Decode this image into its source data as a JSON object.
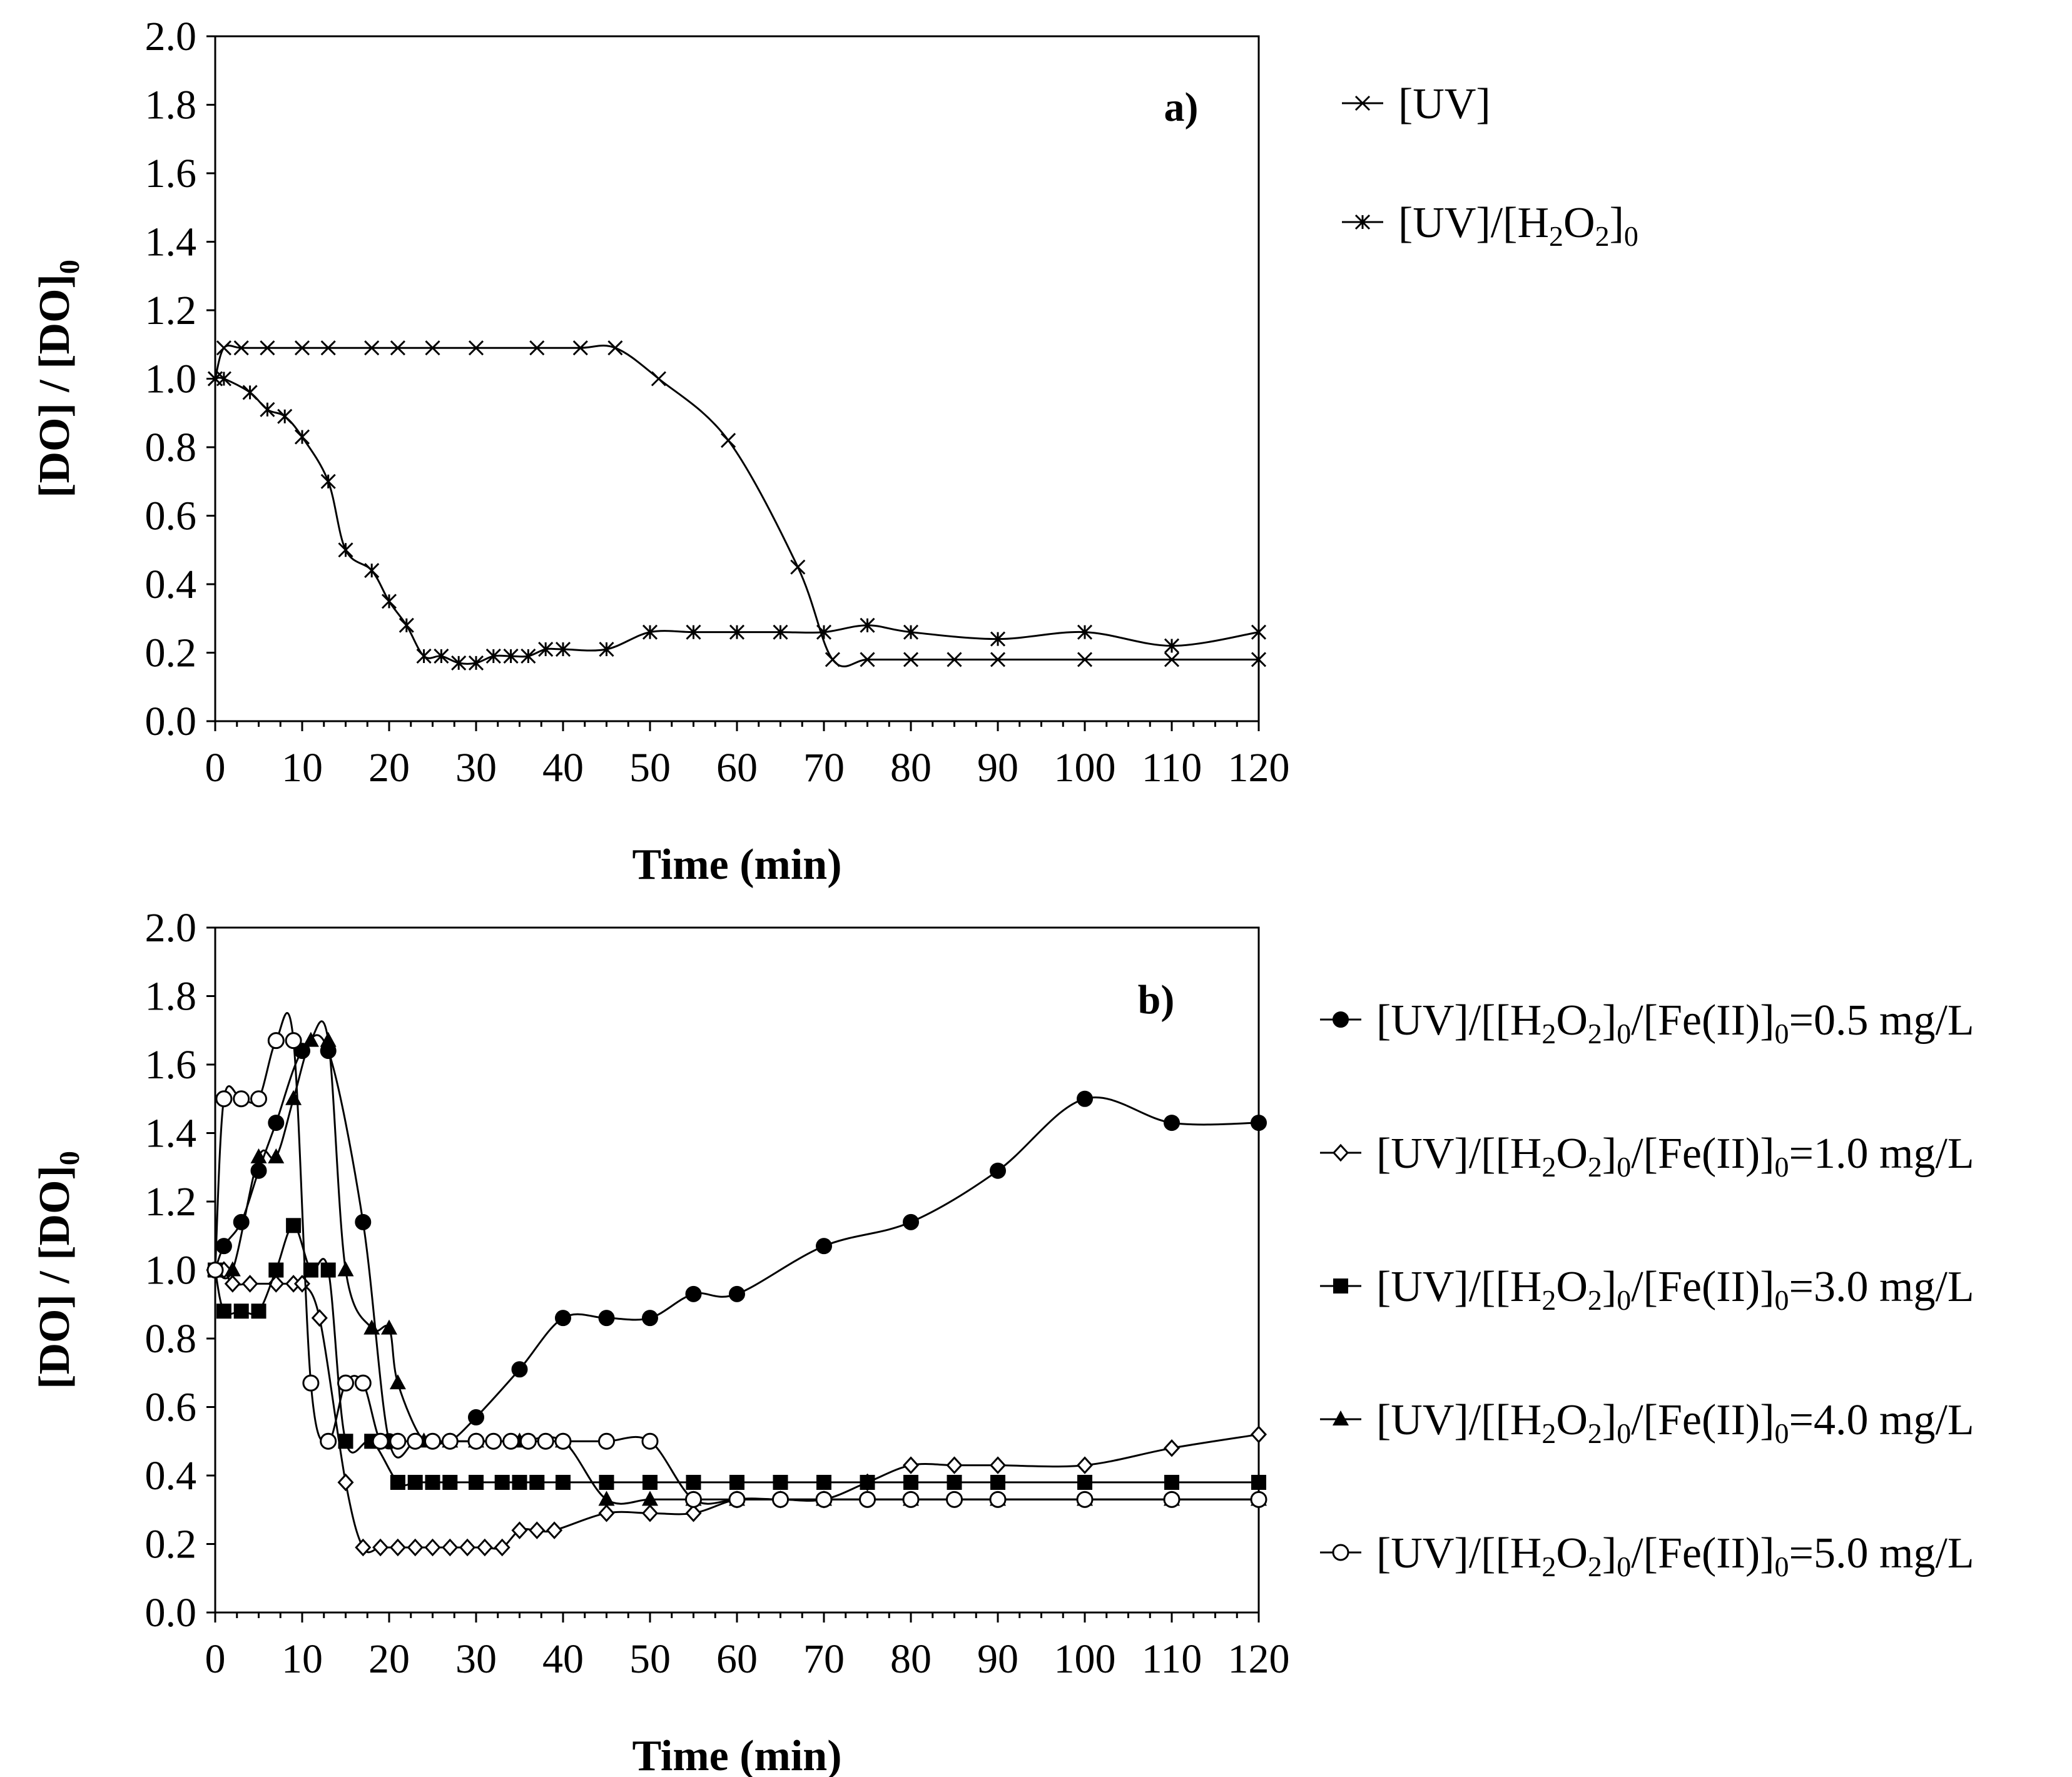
{
  "chart_data": [
    {
      "type": "line",
      "panel_label": "a)",
      "xlabel": "Time (min)",
      "ylabel": {
        "main": "[DO] / [DO]",
        "sub": "0"
      },
      "xlim": [
        0,
        120
      ],
      "ylim": [
        0,
        2
      ],
      "xticks": [
        0,
        10,
        20,
        30,
        40,
        50,
        60,
        70,
        80,
        90,
        100,
        110,
        120
      ],
      "yticks": [
        "0.0",
        "0.2",
        "0.4",
        "0.6",
        "0.8",
        "1.0",
        "1.2",
        "1.4",
        "1.6",
        "1.8",
        "2.0"
      ],
      "legend_position": "right",
      "series": [
        {
          "name": "[UV]",
          "legend_parts": [
            {
              "t": "[UV]"
            }
          ],
          "marker": "x",
          "points": [
            [
              0,
              1.0
            ],
            [
              1,
              1.09
            ],
            [
              3,
              1.09
            ],
            [
              6,
              1.09
            ],
            [
              10,
              1.09
            ],
            [
              13,
              1.09
            ],
            [
              18,
              1.09
            ],
            [
              21,
              1.09
            ],
            [
              25,
              1.09
            ],
            [
              30,
              1.09
            ],
            [
              37,
              1.09
            ],
            [
              42,
              1.09
            ],
            [
              46,
              1.09
            ],
            [
              51,
              1.0
            ],
            [
              59,
              0.82
            ],
            [
              67,
              0.45
            ],
            [
              71,
              0.18
            ],
            [
              75,
              0.18
            ],
            [
              80,
              0.18
            ],
            [
              85,
              0.18
            ],
            [
              90,
              0.18
            ],
            [
              100,
              0.18
            ],
            [
              110,
              0.18
            ],
            [
              120,
              0.18
            ]
          ]
        },
        {
          "name": "[UV]/[H2O2]0",
          "legend_parts": [
            {
              "t": "[UV]/[H"
            },
            {
              "s": "2"
            },
            {
              "t": "O"
            },
            {
              "s": "2"
            },
            {
              "t": "]"
            },
            {
              "s": "0"
            }
          ],
          "marker": "star",
          "points": [
            [
              0,
              1.0
            ],
            [
              1,
              1.0
            ],
            [
              4,
              0.96
            ],
            [
              6,
              0.91
            ],
            [
              8,
              0.89
            ],
            [
              10,
              0.83
            ],
            [
              13,
              0.7
            ],
            [
              15,
              0.5
            ],
            [
              18,
              0.44
            ],
            [
              20,
              0.35
            ],
            [
              22,
              0.28
            ],
            [
              24,
              0.19
            ],
            [
              26,
              0.19
            ],
            [
              28,
              0.17
            ],
            [
              30,
              0.17
            ],
            [
              32,
              0.19
            ],
            [
              34,
              0.19
            ],
            [
              36,
              0.19
            ],
            [
              38,
              0.21
            ],
            [
              40,
              0.21
            ],
            [
              45,
              0.21
            ],
            [
              50,
              0.26
            ],
            [
              55,
              0.26
            ],
            [
              60,
              0.26
            ],
            [
              65,
              0.26
            ],
            [
              70,
              0.26
            ],
            [
              75,
              0.28
            ],
            [
              80,
              0.26
            ],
            [
              90,
              0.24
            ],
            [
              100,
              0.26
            ],
            [
              110,
              0.22
            ],
            [
              120,
              0.26
            ]
          ]
        }
      ]
    },
    {
      "type": "line",
      "panel_label": "b)",
      "xlabel": "Time (min)",
      "ylabel": {
        "main": "[DO] / [DO]",
        "sub": "0"
      },
      "xlim": [
        0,
        120
      ],
      "ylim": [
        0,
        2
      ],
      "xticks": [
        0,
        10,
        20,
        30,
        40,
        50,
        60,
        70,
        80,
        90,
        100,
        110,
        120
      ],
      "yticks": [
        "0.0",
        "0.2",
        "0.4",
        "0.6",
        "0.8",
        "1.0",
        "1.2",
        "1.4",
        "1.6",
        "1.8",
        "2.0"
      ],
      "legend_position": "right",
      "series": [
        {
          "name": "[UV]/[[H2O2]0/[Fe(II)]0=0.5 mg/L",
          "legend_parts": [
            {
              "t": "[UV]/[[H"
            },
            {
              "s": "2"
            },
            {
              "t": "O"
            },
            {
              "s": "2"
            },
            {
              "t": "]"
            },
            {
              "s": "0"
            },
            {
              "t": "/[Fe(II)]"
            },
            {
              "s": "0"
            },
            {
              "t": "=0.5 mg/L"
            }
          ],
          "marker": "circle-filled",
          "points": [
            [
              0,
              1.0
            ],
            [
              1,
              1.07
            ],
            [
              3,
              1.14
            ],
            [
              5,
              1.29
            ],
            [
              7,
              1.43
            ],
            [
              10,
              1.64
            ],
            [
              13,
              1.64
            ],
            [
              17,
              1.14
            ],
            [
              20,
              0.5
            ],
            [
              23,
              0.5
            ],
            [
              25,
              0.5
            ],
            [
              27,
              0.5
            ],
            [
              30,
              0.57
            ],
            [
              35,
              0.71
            ],
            [
              40,
              0.86
            ],
            [
              45,
              0.86
            ],
            [
              50,
              0.86
            ],
            [
              55,
              0.93
            ],
            [
              60,
              0.93
            ],
            [
              70,
              1.07
            ],
            [
              80,
              1.14
            ],
            [
              90,
              1.29
            ],
            [
              100,
              1.5
            ],
            [
              110,
              1.43
            ],
            [
              120,
              1.43
            ]
          ]
        },
        {
          "name": "[UV]/[[H2O2]0/[Fe(II)]0=1.0 mg/L",
          "legend_parts": [
            {
              "t": "[UV]/[[H"
            },
            {
              "s": "2"
            },
            {
              "t": "O"
            },
            {
              "s": "2"
            },
            {
              "t": "]"
            },
            {
              "s": "0"
            },
            {
              "t": "/[Fe(II)]"
            },
            {
              "s": "0"
            },
            {
              "t": "=1.0 mg/L"
            }
          ],
          "marker": "diamond-open",
          "points": [
            [
              0,
              1.0
            ],
            [
              1,
              1.0
            ],
            [
              2,
              0.96
            ],
            [
              4,
              0.96
            ],
            [
              7,
              0.96
            ],
            [
              9,
              0.96
            ],
            [
              10,
              0.96
            ],
            [
              12,
              0.86
            ],
            [
              15,
              0.38
            ],
            [
              17,
              0.19
            ],
            [
              19,
              0.19
            ],
            [
              21,
              0.19
            ],
            [
              23,
              0.19
            ],
            [
              25,
              0.19
            ],
            [
              27,
              0.19
            ],
            [
              29,
              0.19
            ],
            [
              31,
              0.19
            ],
            [
              33,
              0.19
            ],
            [
              35,
              0.24
            ],
            [
              37,
              0.24
            ],
            [
              39,
              0.24
            ],
            [
              45,
              0.29
            ],
            [
              50,
              0.29
            ],
            [
              55,
              0.29
            ],
            [
              60,
              0.33
            ],
            [
              65,
              0.33
            ],
            [
              70,
              0.33
            ],
            [
              75,
              0.38
            ],
            [
              80,
              0.43
            ],
            [
              85,
              0.43
            ],
            [
              90,
              0.43
            ],
            [
              100,
              0.43
            ],
            [
              110,
              0.48
            ],
            [
              120,
              0.52
            ]
          ]
        },
        {
          "name": "[UV]/[[H2O2]0/[Fe(II)]0=3.0 mg/L",
          "legend_parts": [
            {
              "t": "[UV]/[[H"
            },
            {
              "s": "2"
            },
            {
              "t": "O"
            },
            {
              "s": "2"
            },
            {
              "t": "]"
            },
            {
              "s": "0"
            },
            {
              "t": "/[Fe(II)]"
            },
            {
              "s": "0"
            },
            {
              "t": "=3.0 mg/L"
            }
          ],
          "marker": "square-filled",
          "points": [
            [
              0,
              1.0
            ],
            [
              1,
              0.88
            ],
            [
              3,
              0.88
            ],
            [
              5,
              0.88
            ],
            [
              7,
              1.0
            ],
            [
              9,
              1.13
            ],
            [
              11,
              1.0
            ],
            [
              13,
              1.0
            ],
            [
              15,
              0.5
            ],
            [
              18,
              0.5
            ],
            [
              21,
              0.38
            ],
            [
              23,
              0.38
            ],
            [
              25,
              0.38
            ],
            [
              27,
              0.38
            ],
            [
              30,
              0.38
            ],
            [
              33,
              0.38
            ],
            [
              35,
              0.38
            ],
            [
              37,
              0.38
            ],
            [
              40,
              0.38
            ],
            [
              45,
              0.38
            ],
            [
              50,
              0.38
            ],
            [
              55,
              0.38
            ],
            [
              60,
              0.38
            ],
            [
              65,
              0.38
            ],
            [
              70,
              0.38
            ],
            [
              75,
              0.38
            ],
            [
              80,
              0.38
            ],
            [
              85,
              0.38
            ],
            [
              90,
              0.38
            ],
            [
              100,
              0.38
            ],
            [
              110,
              0.38
            ],
            [
              120,
              0.38
            ]
          ]
        },
        {
          "name": "[UV]/[[H2O2]0/[Fe(II)]0=4.0 mg/L",
          "legend_parts": [
            {
              "t": "[UV]/[[H"
            },
            {
              "s": "2"
            },
            {
              "t": "O"
            },
            {
              "s": "2"
            },
            {
              "t": "]"
            },
            {
              "s": "0"
            },
            {
              "t": "/[Fe(II)]"
            },
            {
              "s": "0"
            },
            {
              "t": "=4.0 mg/L"
            }
          ],
          "marker": "triangle-filled",
          "points": [
            [
              0,
              1.0
            ],
            [
              2,
              1.0
            ],
            [
              5,
              1.33
            ],
            [
              7,
              1.33
            ],
            [
              9,
              1.5
            ],
            [
              11,
              1.67
            ],
            [
              13,
              1.67
            ],
            [
              15,
              1.0
            ],
            [
              18,
              0.83
            ],
            [
              20,
              0.83
            ],
            [
              21,
              0.67
            ],
            [
              24,
              0.5
            ],
            [
              27,
              0.5
            ],
            [
              30,
              0.5
            ],
            [
              35,
              0.5
            ],
            [
              40,
              0.5
            ],
            [
              45,
              0.33
            ],
            [
              50,
              0.33
            ],
            [
              55,
              0.33
            ],
            [
              60,
              0.33
            ],
            [
              70,
              0.33
            ],
            [
              80,
              0.33
            ],
            [
              90,
              0.33
            ],
            [
              100,
              0.33
            ],
            [
              110,
              0.33
            ],
            [
              120,
              0.33
            ]
          ]
        },
        {
          "name": "[UV]/[[H2O2]0/[Fe(II)]0=5.0 mg/L",
          "legend_parts": [
            {
              "t": "[UV]/[[H"
            },
            {
              "s": "2"
            },
            {
              "t": "O"
            },
            {
              "s": "2"
            },
            {
              "t": "]"
            },
            {
              "s": "0"
            },
            {
              "t": "/[Fe(II)]"
            },
            {
              "s": "0"
            },
            {
              "t": "=5.0 mg/L"
            }
          ],
          "marker": "circle-open",
          "points": [
            [
              0,
              1.0
            ],
            [
              1,
              1.5
            ],
            [
              3,
              1.5
            ],
            [
              5,
              1.5
            ],
            [
              7,
              1.67
            ],
            [
              9,
              1.67
            ],
            [
              11,
              0.67
            ],
            [
              13,
              0.5
            ],
            [
              15,
              0.67
            ],
            [
              17,
              0.67
            ],
            [
              19,
              0.5
            ],
            [
              21,
              0.5
            ],
            [
              23,
              0.5
            ],
            [
              25,
              0.5
            ],
            [
              27,
              0.5
            ],
            [
              30,
              0.5
            ],
            [
              32,
              0.5
            ],
            [
              34,
              0.5
            ],
            [
              36,
              0.5
            ],
            [
              38,
              0.5
            ],
            [
              40,
              0.5
            ],
            [
              45,
              0.5
            ],
            [
              50,
              0.5
            ],
            [
              55,
              0.33
            ],
            [
              60,
              0.33
            ],
            [
              65,
              0.33
            ],
            [
              70,
              0.33
            ],
            [
              75,
              0.33
            ],
            [
              80,
              0.33
            ],
            [
              85,
              0.33
            ],
            [
              90,
              0.33
            ],
            [
              100,
              0.33
            ],
            [
              110,
              0.33
            ],
            [
              120,
              0.33
            ]
          ]
        }
      ]
    }
  ]
}
